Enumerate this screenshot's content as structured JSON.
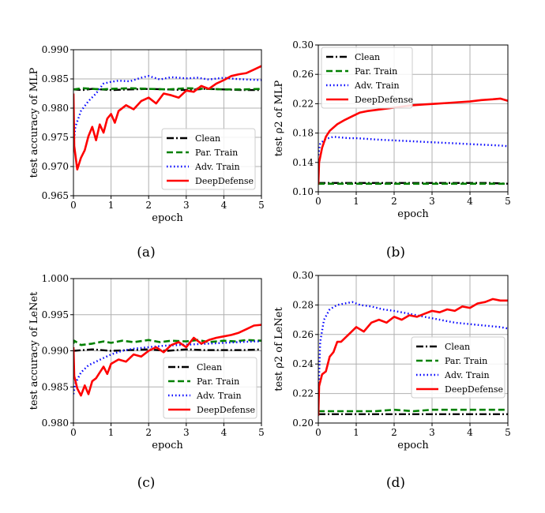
{
  "chart_data": [
    {
      "type": "line",
      "caption": "(a)",
      "xlabel": "epoch",
      "ylabel": "test accuracy of  MLP",
      "xlim": [
        0,
        5
      ],
      "ylim": [
        0.965,
        0.99
      ],
      "xticks": [
        "0",
        "1",
        "2",
        "3",
        "4",
        "5"
      ],
      "yticks": [
        "0.965",
        "0.970",
        "0.975",
        "0.980",
        "0.985",
        "0.990"
      ],
      "grid": true,
      "legend_position": "lower-right",
      "series": [
        {
          "name": "Clean",
          "color": "#000000",
          "style": "dashdot",
          "x": [
            0,
            0.25,
            0.5,
            0.75,
            1,
            1.5,
            2,
            2.5,
            3,
            3.5,
            4,
            4.5,
            5
          ],
          "y": [
            0.9832,
            0.9831,
            0.9833,
            0.9832,
            0.9831,
            0.9832,
            0.9833,
            0.9832,
            0.9831,
            0.9833,
            0.9832,
            0.9831,
            0.9831
          ]
        },
        {
          "name": "Par. Train",
          "color": "#008000",
          "style": "dashed",
          "x": [
            0,
            0.25,
            0.5,
            0.75,
            1,
            1.5,
            2,
            2.5,
            3,
            3.5,
            4,
            4.5,
            5
          ],
          "y": [
            0.9832,
            0.9834,
            0.9833,
            0.9832,
            0.9833,
            0.9834,
            0.9833,
            0.9832,
            0.9834,
            0.9833,
            0.9832,
            0.9832,
            0.9833
          ]
        },
        {
          "name": "Adv. Train",
          "color": "#0000ff",
          "style": "dotted",
          "x": [
            0,
            0.05,
            0.2,
            0.4,
            0.6,
            0.8,
            1,
            1.2,
            1.5,
            1.8,
            2,
            2.3,
            2.6,
            3,
            3.3,
            3.6,
            4,
            4.3,
            4.6,
            5
          ],
          "y": [
            0.9735,
            0.9768,
            0.9795,
            0.9812,
            0.9825,
            0.9842,
            0.9845,
            0.9847,
            0.9846,
            0.9852,
            0.9855,
            0.9849,
            0.9853,
            0.9851,
            0.9852,
            0.9849,
            0.9852,
            0.985,
            0.9849,
            0.9848
          ]
        },
        {
          "name": "DeepDefense",
          "color": "#ff0000",
          "style": "solid",
          "x": [
            0,
            0.02,
            0.1,
            0.2,
            0.3,
            0.4,
            0.5,
            0.6,
            0.7,
            0.8,
            0.9,
            1.0,
            1.1,
            1.2,
            1.4,
            1.6,
            1.8,
            2.0,
            2.2,
            2.4,
            2.6,
            2.8,
            3.0,
            3.2,
            3.4,
            3.6,
            3.8,
            4.0,
            4.2,
            4.4,
            4.6,
            4.8,
            5.0
          ],
          "y": [
            0.9825,
            0.9735,
            0.9695,
            0.9715,
            0.9728,
            0.9752,
            0.9768,
            0.9745,
            0.9772,
            0.9758,
            0.9782,
            0.979,
            0.9775,
            0.9795,
            0.9805,
            0.9798,
            0.9812,
            0.9818,
            0.9808,
            0.9825,
            0.9822,
            0.9818,
            0.983,
            0.9828,
            0.9838,
            0.9833,
            0.9842,
            0.9848,
            0.9855,
            0.9858,
            0.986,
            0.9866,
            0.9872
          ]
        }
      ]
    },
    {
      "type": "line",
      "caption": "(b)",
      "xlabel": "epoch",
      "ylabel": "test ρ2 of  MLP",
      "xlim": [
        0,
        5
      ],
      "ylim": [
        0.1,
        0.3
      ],
      "xticks": [
        "0",
        "1",
        "2",
        "3",
        "4",
        "5"
      ],
      "yticks": [
        "0.10",
        "0.14",
        "0.18",
        "0.22",
        "0.26",
        "0.30"
      ],
      "grid": true,
      "legend_position": "upper-left",
      "series": [
        {
          "name": "Clean",
          "color": "#000000",
          "style": "dashdot",
          "x": [
            0,
            0.5,
            1,
            1.5,
            2,
            2.5,
            3,
            3.5,
            4,
            4.5,
            5
          ],
          "y": [
            0.112,
            0.112,
            0.112,
            0.112,
            0.112,
            0.112,
            0.112,
            0.112,
            0.112,
            0.112,
            0.111
          ]
        },
        {
          "name": "Par. Train",
          "color": "#008000",
          "style": "dashed",
          "x": [
            0,
            0.5,
            1,
            1.5,
            2,
            2.5,
            3,
            3.5,
            4,
            4.5,
            5
          ],
          "y": [
            0.111,
            0.111,
            0.111,
            0.111,
            0.111,
            0.111,
            0.111,
            0.111,
            0.111,
            0.111,
            0.111
          ]
        },
        {
          "name": "Adv. Train",
          "color": "#0000ff",
          "style": "dotted",
          "x": [
            0,
            0.05,
            0.2,
            0.4,
            0.6,
            0.8,
            1,
            1.3,
            1.6,
            2,
            2.4,
            2.8,
            3.2,
            3.6,
            4,
            4.4,
            4.8,
            5
          ],
          "y": [
            0.15,
            0.166,
            0.172,
            0.175,
            0.174,
            0.173,
            0.173,
            0.172,
            0.171,
            0.17,
            0.169,
            0.168,
            0.167,
            0.166,
            0.165,
            0.164,
            0.163,
            0.162
          ]
        },
        {
          "name": "DeepDefense",
          "color": "#ff0000",
          "style": "solid",
          "x": [
            0,
            0.02,
            0.1,
            0.2,
            0.3,
            0.5,
            0.7,
            0.9,
            1.1,
            1.3,
            1.6,
            1.9,
            2.2,
            2.5,
            2.8,
            3.1,
            3.4,
            3.7,
            4.0,
            4.3,
            4.6,
            4.8,
            5.0
          ],
          "y": [
            0.11,
            0.14,
            0.16,
            0.175,
            0.183,
            0.192,
            0.198,
            0.203,
            0.208,
            0.21,
            0.212,
            0.214,
            0.216,
            0.218,
            0.219,
            0.22,
            0.221,
            0.222,
            0.223,
            0.225,
            0.226,
            0.227,
            0.224
          ]
        }
      ]
    },
    {
      "type": "line",
      "caption": "(c)",
      "xlabel": "epoch",
      "ylabel": "test accuracy of  LeNet",
      "xlim": [
        0,
        5
      ],
      "ylim": [
        0.98,
        1.0
      ],
      "xticks": [
        "0",
        "1",
        "2",
        "3",
        "4",
        "5"
      ],
      "yticks": [
        "0.980",
        "0.985",
        "0.990",
        "0.995",
        "1.000"
      ],
      "grid": true,
      "legend_position": "lower-right",
      "series": [
        {
          "name": "Clean",
          "color": "#000000",
          "style": "dashdot",
          "x": [
            0,
            0.5,
            1,
            1.5,
            2,
            2.5,
            3,
            3.5,
            4,
            4.5,
            5
          ],
          "y": [
            0.99,
            0.9902,
            0.99,
            0.9901,
            0.9902,
            0.99,
            0.9902,
            0.9901,
            0.9901,
            0.9901,
            0.9902
          ]
        },
        {
          "name": "Par. Train",
          "color": "#008000",
          "style": "dashed",
          "x": [
            0,
            0.02,
            0.2,
            0.5,
            0.8,
            1,
            1.3,
            1.6,
            2,
            2.3,
            2.6,
            3,
            3.3,
            3.6,
            4,
            4.3,
            4.6,
            5
          ],
          "y": [
            0.991,
            0.9914,
            0.9908,
            0.991,
            0.9913,
            0.9911,
            0.9914,
            0.9912,
            0.9915,
            0.9912,
            0.9914,
            0.9913,
            0.9915,
            0.9912,
            0.9914,
            0.9913,
            0.9915,
            0.9914
          ]
        },
        {
          "name": "Adv. Train",
          "color": "#0000ff",
          "style": "dotted",
          "x": [
            0,
            0.05,
            0.2,
            0.4,
            0.6,
            0.8,
            1,
            1.3,
            1.6,
            2,
            2.4,
            2.8,
            3.2,
            3.6,
            4,
            4.4,
            4.8,
            5
          ],
          "y": [
            0.984,
            0.9855,
            0.987,
            0.988,
            0.9885,
            0.989,
            0.9895,
            0.99,
            0.9903,
            0.9905,
            0.9907,
            0.9908,
            0.9909,
            0.991,
            0.9911,
            0.9912,
            0.9913,
            0.9913
          ]
        },
        {
          "name": "DeepDefense",
          "color": "#ff0000",
          "style": "solid",
          "x": [
            0,
            0.02,
            0.1,
            0.2,
            0.3,
            0.4,
            0.5,
            0.6,
            0.7,
            0.8,
            0.9,
            1.0,
            1.2,
            1.4,
            1.6,
            1.8,
            2.0,
            2.2,
            2.4,
            2.6,
            2.8,
            3.0,
            3.2,
            3.4,
            3.6,
            3.8,
            4.0,
            4.2,
            4.4,
            4.6,
            4.8,
            5.0
          ],
          "y": [
            0.9905,
            0.9865,
            0.9848,
            0.9838,
            0.9852,
            0.984,
            0.9858,
            0.9862,
            0.987,
            0.9878,
            0.9868,
            0.9882,
            0.9888,
            0.9885,
            0.9895,
            0.9892,
            0.99,
            0.9905,
            0.9898,
            0.9908,
            0.9912,
            0.9905,
            0.9918,
            0.991,
            0.9915,
            0.9918,
            0.992,
            0.9922,
            0.9925,
            0.993,
            0.9935,
            0.9936
          ]
        }
      ]
    },
    {
      "type": "line",
      "caption": "(d)",
      "xlabel": "epoch",
      "ylabel": "test ρ2 of  LeNet",
      "xlim": [
        0,
        5
      ],
      "ylim": [
        0.2,
        0.3
      ],
      "xticks": [
        "0",
        "1",
        "2",
        "3",
        "4",
        "5"
      ],
      "yticks": [
        "0.20",
        "0.22",
        "0.24",
        "0.26",
        "0.28",
        "0.30"
      ],
      "grid": true,
      "legend_position": "lower-right",
      "series": [
        {
          "name": "Clean",
          "color": "#000000",
          "style": "dashdot",
          "x": [
            0,
            0.5,
            1,
            1.5,
            2,
            2.5,
            3,
            3.5,
            4,
            4.5,
            5
          ],
          "y": [
            0.206,
            0.206,
            0.206,
            0.206,
            0.206,
            0.206,
            0.206,
            0.206,
            0.206,
            0.206,
            0.206
          ]
        },
        {
          "name": "Par. Train",
          "color": "#008000",
          "style": "dashed",
          "x": [
            0,
            0.5,
            1,
            1.5,
            2,
            2.5,
            3,
            3.5,
            4,
            4.5,
            5
          ],
          "y": [
            0.208,
            0.208,
            0.208,
            0.208,
            0.209,
            0.208,
            0.209,
            0.209,
            0.209,
            0.209,
            0.209
          ]
        },
        {
          "name": "Adv. Train",
          "color": "#0000ff",
          "style": "dotted",
          "x": [
            0,
            0.05,
            0.15,
            0.3,
            0.5,
            0.7,
            0.9,
            1.1,
            1.4,
            1.7,
            2.0,
            2.4,
            2.8,
            3.2,
            3.6,
            4.0,
            4.4,
            4.8,
            5.0
          ],
          "y": [
            0.215,
            0.255,
            0.27,
            0.277,
            0.28,
            0.281,
            0.282,
            0.28,
            0.279,
            0.277,
            0.276,
            0.274,
            0.272,
            0.27,
            0.268,
            0.267,
            0.266,
            0.265,
            0.264
          ]
        },
        {
          "name": "DeepDefense",
          "color": "#ff0000",
          "style": "solid",
          "x": [
            0,
            0.02,
            0.1,
            0.2,
            0.3,
            0.4,
            0.5,
            0.6,
            0.8,
            1.0,
            1.2,
            1.4,
            1.6,
            1.8,
            2.0,
            2.2,
            2.4,
            2.6,
            2.8,
            3.0,
            3.2,
            3.4,
            3.6,
            3.8,
            4.0,
            4.2,
            4.4,
            4.6,
            4.8,
            5.0
          ],
          "y": [
            0.205,
            0.225,
            0.233,
            0.235,
            0.245,
            0.248,
            0.255,
            0.255,
            0.26,
            0.265,
            0.262,
            0.268,
            0.27,
            0.268,
            0.272,
            0.27,
            0.273,
            0.272,
            0.274,
            0.276,
            0.275,
            0.277,
            0.276,
            0.279,
            0.278,
            0.281,
            0.282,
            0.284,
            0.283,
            0.283
          ]
        }
      ]
    }
  ]
}
